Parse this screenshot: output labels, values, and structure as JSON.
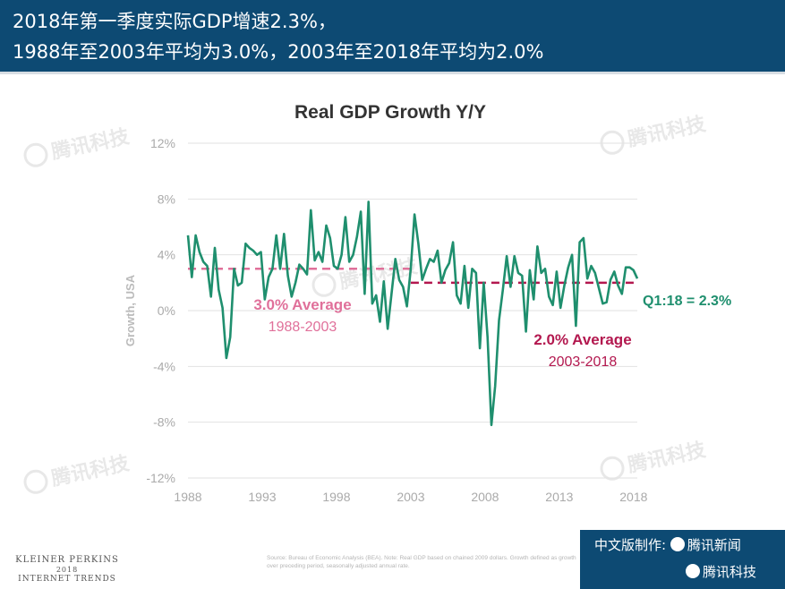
{
  "header": {
    "line1": "2018年第一季度实际GDP增速2.3%，",
    "line2": "1988年至2003年平均为3.0%，2003年至2018年平均为2.0%"
  },
  "watermark": "腾讯科技",
  "footer": {
    "brand": "KLEINER PERKINS",
    "year": "2018",
    "report": "INTERNET TRENDS",
    "source": "Source: Bureau of Economic Analysis (BEA). Note: Real GDP based on chained 2009 dollars. Growth defined as growth over preceding period, seasonally adjusted annual rate.",
    "badge_line1": "中文版制作:",
    "badge_brand1": "腾讯新闻",
    "badge_brand2": "腾讯科技"
  },
  "colors": {
    "header_bg": "#0d4a73",
    "series": "#1f8f6e",
    "avg1": "#e0709a",
    "avg2": "#b3184f"
  },
  "chart_data": {
    "type": "line",
    "title": "Real GDP Growth Y/Y",
    "ylabel": "Growth, USA",
    "xlabel": "",
    "xlim": [
      1988,
      2018.25
    ],
    "ylim": [
      -12,
      12
    ],
    "x_ticks": [
      "1988",
      "1993",
      "1998",
      "2003",
      "2008",
      "2013",
      "2018"
    ],
    "y_ticks": [
      "12%",
      "8%",
      "4%",
      "0%",
      "-4%",
      "-8%",
      "-12%"
    ],
    "grid": true,
    "series": [
      {
        "values": [
          5.4,
          2.4,
          5.4,
          4.2,
          3.5,
          3.2,
          1.0,
          4.5,
          1.5,
          0.2,
          -3.4,
          -1.9,
          3.0,
          1.8,
          2.0,
          4.8,
          4.5,
          4.3,
          4.0,
          4.2,
          0.8,
          2.4,
          3.0,
          5.4,
          3.0,
          5.5,
          2.5,
          1.0,
          2.0,
          3.3,
          3.0,
          2.6,
          7.2,
          3.6,
          4.2,
          3.5,
          6.1,
          5.2,
          3.2,
          3.0,
          4.0,
          6.7,
          3.5,
          4.0,
          5.3,
          7.1,
          1.2,
          7.8,
          0.5,
          1.1,
          -0.8,
          2.1,
          -1.3,
          1.2,
          3.7,
          2.2,
          1.7,
          0.3,
          3.0,
          6.9,
          4.8,
          2.2,
          3.0,
          3.7,
          3.5,
          4.3,
          2.0,
          2.9,
          3.4,
          4.9,
          1.1,
          0.5,
          3.2,
          0.2,
          3.0,
          2.7,
          -2.7,
          2.0,
          -1.9,
          -8.2,
          -5.4,
          -0.7,
          1.5,
          3.9,
          1.7,
          3.9,
          2.7,
          2.5,
          -1.5,
          2.9,
          0.8,
          4.6,
          2.7,
          3.0,
          1.0,
          0.4,
          2.8,
          0.2,
          1.8,
          3.1,
          4.0,
          -1.1,
          4.9,
          5.2,
          2.3,
          3.2,
          2.7,
          1.6,
          0.5,
          0.6,
          2.2,
          2.8,
          1.8,
          1.2,
          3.1,
          3.1,
          2.9,
          2.3
        ]
      }
    ],
    "averages": [
      {
        "label": "3.0% Average",
        "period": "1988-2003",
        "value": 3.0,
        "x_start": 1988,
        "x_end": 2003
      },
      {
        "label": "2.0% Average",
        "period": "2003-2018",
        "value": 2.0,
        "x_start": 2003,
        "x_end": 2018.25
      }
    ],
    "end_label": "Q1:18 = 2.3%"
  }
}
